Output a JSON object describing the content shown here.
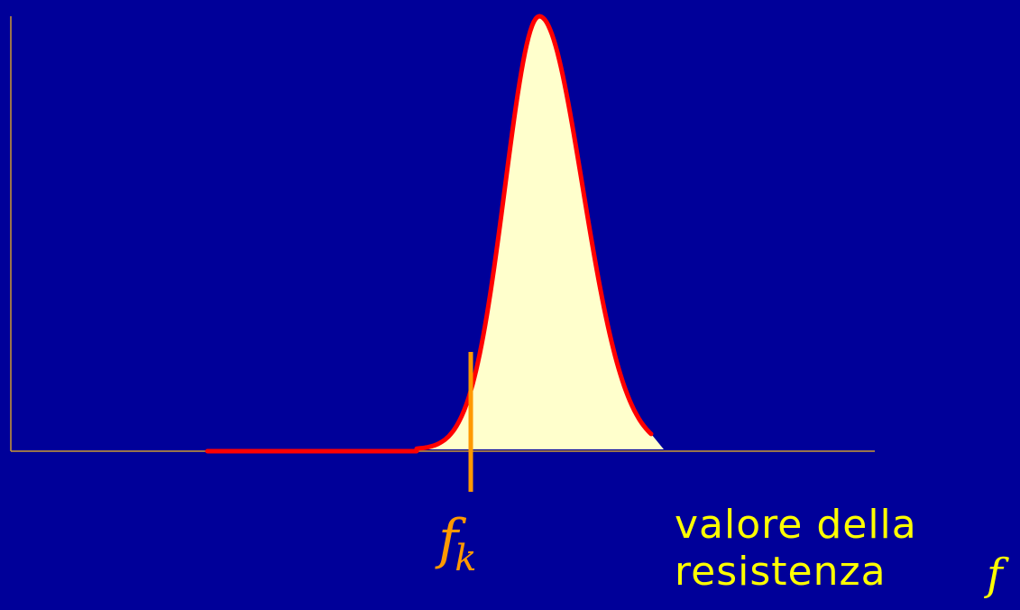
{
  "diagram": {
    "type": "probability-density",
    "colors": {
      "background": "#000099",
      "axes": "#cc9933",
      "curve": "#ff0000",
      "fill": "#ffffcc",
      "marker": "#ff9900",
      "caption": "#ffff00"
    },
    "marker_label": {
      "main": "f",
      "subscript": "k"
    },
    "axis_caption": {
      "line1": "valore della",
      "line2": "resistenza"
    },
    "axis_symbol": "f"
  }
}
